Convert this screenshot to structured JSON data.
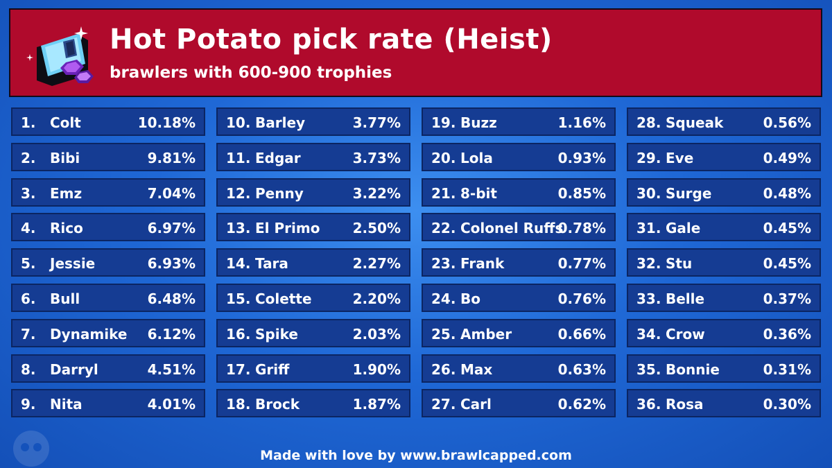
{
  "header": {
    "title": "Hot Potato pick rate (Heist)",
    "subtitle": "brawlers with 600-900 trophies",
    "icon": "gadget-gems-icon"
  },
  "columns": [
    [
      {
        "rank": "1.",
        "name": "Colt",
        "pct": "10.18%"
      },
      {
        "rank": "2.",
        "name": "Bibi",
        "pct": "9.81%"
      },
      {
        "rank": "3.",
        "name": "Emz",
        "pct": "7.04%"
      },
      {
        "rank": "4.",
        "name": "Rico",
        "pct": "6.97%"
      },
      {
        "rank": "5.",
        "name": "Jessie",
        "pct": "6.93%"
      },
      {
        "rank": "6.",
        "name": "Bull",
        "pct": "6.48%"
      },
      {
        "rank": "7.",
        "name": "Dynamike",
        "pct": "6.12%"
      },
      {
        "rank": "8.",
        "name": "Darryl",
        "pct": "4.51%"
      },
      {
        "rank": "9.",
        "name": "Nita",
        "pct": "4.01%"
      }
    ],
    [
      {
        "rank": "10.",
        "name": "Barley",
        "pct": "3.77%"
      },
      {
        "rank": "11.",
        "name": "Edgar",
        "pct": "3.73%"
      },
      {
        "rank": "12.",
        "name": "Penny",
        "pct": "3.22%"
      },
      {
        "rank": "13.",
        "name": "El Primo",
        "pct": "2.50%"
      },
      {
        "rank": "14.",
        "name": "Tara",
        "pct": "2.27%"
      },
      {
        "rank": "15.",
        "name": "Colette",
        "pct": "2.20%"
      },
      {
        "rank": "16.",
        "name": "Spike",
        "pct": "2.03%"
      },
      {
        "rank": "17.",
        "name": "Griff",
        "pct": "1.90%"
      },
      {
        "rank": "18.",
        "name": "Brock",
        "pct": "1.87%"
      }
    ],
    [
      {
        "rank": "19.",
        "name": "Buzz",
        "pct": "1.16%"
      },
      {
        "rank": "20.",
        "name": "Lola",
        "pct": "0.93%"
      },
      {
        "rank": "21.",
        "name": "8-bit",
        "pct": "0.85%"
      },
      {
        "rank": "22.",
        "name": "Colonel Ruffs",
        "pct": "0.78%"
      },
      {
        "rank": "23.",
        "name": "Frank",
        "pct": "0.77%"
      },
      {
        "rank": "24.",
        "name": "Bo",
        "pct": "0.76%"
      },
      {
        "rank": "25.",
        "name": "Amber",
        "pct": "0.66%"
      },
      {
        "rank": "26.",
        "name": "Max",
        "pct": "0.63%"
      },
      {
        "rank": "27.",
        "name": "Carl",
        "pct": "0.62%"
      }
    ],
    [
      {
        "rank": "28.",
        "name": "Squeak",
        "pct": "0.56%"
      },
      {
        "rank": "29.",
        "name": "Eve",
        "pct": "0.49%"
      },
      {
        "rank": "30.",
        "name": "Surge",
        "pct": "0.48%"
      },
      {
        "rank": "31.",
        "name": "Gale",
        "pct": "0.45%"
      },
      {
        "rank": "32.",
        "name": "Stu",
        "pct": "0.45%"
      },
      {
        "rank": "33.",
        "name": "Belle",
        "pct": "0.37%"
      },
      {
        "rank": "34.",
        "name": "Crow",
        "pct": "0.36%"
      },
      {
        "rank": "35.",
        "name": "Bonnie",
        "pct": "0.31%"
      },
      {
        "rank": "36.",
        "name": "Rosa",
        "pct": "0.30%"
      }
    ]
  ],
  "footer": "Made with love by www.brawlcapped.com"
}
